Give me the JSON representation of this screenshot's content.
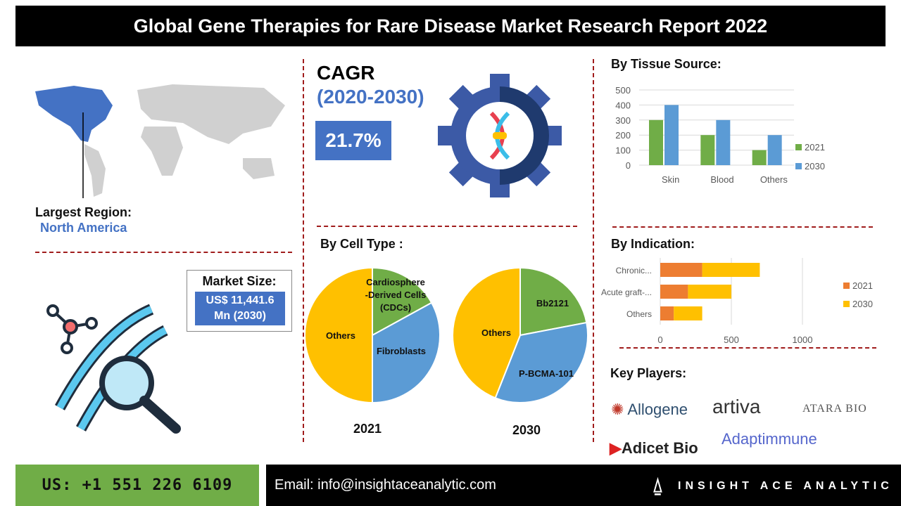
{
  "title": "Global Gene Therapies for Rare Disease Market Research Report 2022",
  "region": {
    "label": "Largest Region:",
    "value": "North America"
  },
  "cagr": {
    "label": "CAGR",
    "period": "(2020-2030)",
    "value": "21.7%"
  },
  "market_size": {
    "label": "Market Size:",
    "line1": "US$ 11,441.6",
    "line2": "Mn (2030)"
  },
  "colors": {
    "accent": "#4472c4",
    "green": "#70ad47",
    "blue": "#5b9bd5",
    "yellow": "#ffc000",
    "orange": "#ed7d31",
    "divider": "#a01c1c"
  },
  "chart_data": [
    {
      "type": "bar",
      "title": "By Tissue Source:",
      "categories": [
        "Skin",
        "Blood",
        "Others"
      ],
      "series": [
        {
          "name": "2021",
          "values": [
            300,
            200,
            100
          ]
        },
        {
          "name": "2030",
          "values": [
            400,
            300,
            200
          ]
        }
      ],
      "ylim": [
        0,
        500
      ],
      "yticks": [
        "0",
        "100",
        "200",
        "300",
        "400",
        "500"
      ],
      "legend": "right"
    },
    {
      "type": "pie",
      "title": "By Cell Type :",
      "year": "2021",
      "slices": [
        {
          "label": "Cardiosphere-Derived Cells (CDCs)",
          "value": 17
        },
        {
          "label": "Fibroblasts",
          "value": 33
        },
        {
          "label": "Others",
          "value": 50
        }
      ]
    },
    {
      "type": "pie",
      "year": "2030",
      "slices": [
        {
          "label": "Bb2121",
          "value": 22
        },
        {
          "label": "P-BCMA-101",
          "value": 34
        },
        {
          "label": "Others",
          "value": 44
        }
      ]
    },
    {
      "type": "bar",
      "orientation": "horizontal-stacked",
      "title": "By Indication:",
      "categories": [
        "Chronic...",
        "Acute graft-...",
        "Others"
      ],
      "series": [
        {
          "name": "2021",
          "values": [
            295,
            195,
            95
          ]
        },
        {
          "name": "2030",
          "values": [
            405,
            305,
            200
          ]
        }
      ],
      "xlim": [
        0,
        1400
      ],
      "xticks": [
        "0",
        "500",
        "1000"
      ],
      "legend": "right"
    }
  ],
  "key_players": {
    "title": "Key Players:",
    "logos": [
      "Allogene",
      "artiva",
      "ATARA BIO",
      "Adicet Bio",
      "Adaptimmune"
    ]
  },
  "footer": {
    "phone": "US: +1 551 226 6109",
    "email": "Email: info@insightaceanalytic.com",
    "brand": "INSIGHT ACE ANALYTIC"
  }
}
